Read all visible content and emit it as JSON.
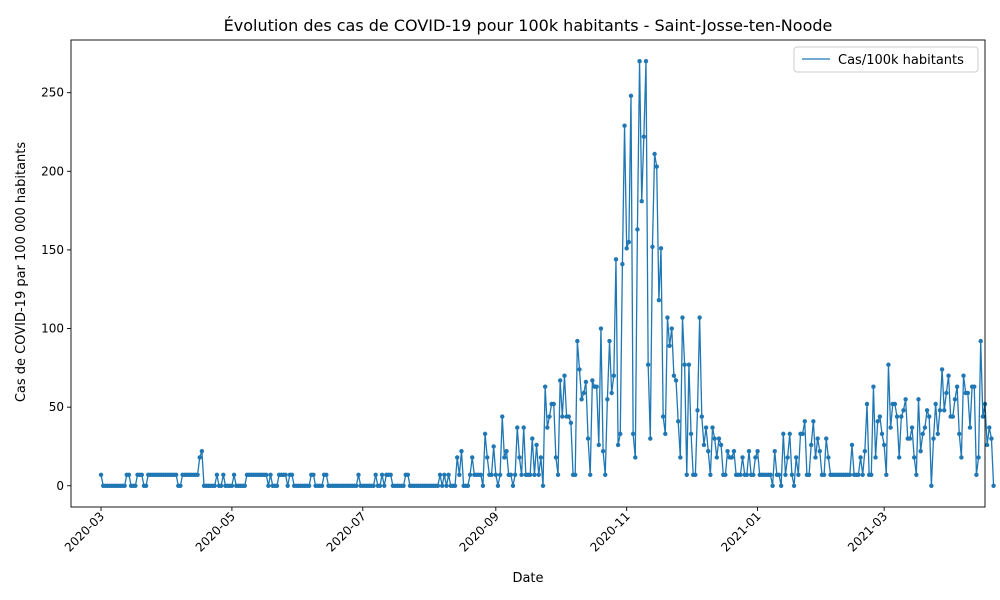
{
  "chart_data": {
    "type": "line",
    "title": "Évolution des cas de COVID-19 pour 100k habitants - Saint-Josse-ten-Noode",
    "xlabel": "Date",
    "ylabel": "Cas de COVID-19 par 100 000 habitants",
    "xlim": [
      "2020-02-16",
      "2021-04-17"
    ],
    "ylim": [
      -13.5,
      283.5
    ],
    "grid": false,
    "legend_position": "top-right",
    "x_ticks": [
      {
        "date": "2020-03-01",
        "label": "2020-03"
      },
      {
        "date": "2020-05-01",
        "label": "2020-05"
      },
      {
        "date": "2020-07-01",
        "label": "2020-07"
      },
      {
        "date": "2020-09-01",
        "label": "2020-09"
      },
      {
        "date": "2020-11-01",
        "label": "2020-11"
      },
      {
        "date": "2021-01-01",
        "label": "2021-01"
      },
      {
        "date": "2021-03-01",
        "label": "2021-03"
      }
    ],
    "y_ticks": [
      0,
      50,
      100,
      150,
      200,
      250
    ],
    "series": [
      {
        "name": "Cas/100k habitants",
        "color": "#1f77b4",
        "start_date": "2020-03-01",
        "step_days": 1,
        "values": [
          7,
          0,
          0,
          0,
          0,
          0,
          0,
          0,
          0,
          0,
          0,
          0,
          7,
          7,
          0,
          0,
          0,
          7,
          7,
          7,
          0,
          0,
          7,
          7,
          7,
          7,
          7,
          7,
          7,
          7,
          7,
          7,
          7,
          7,
          7,
          7,
          0,
          0,
          7,
          7,
          7,
          7,
          7,
          7,
          7,
          7,
          18,
          22,
          0,
          0,
          0,
          0,
          0,
          0,
          7,
          0,
          0,
          7,
          0,
          0,
          0,
          0,
          7,
          0,
          0,
          0,
          0,
          0,
          7,
          7,
          7,
          7,
          7,
          7,
          7,
          7,
          7,
          7,
          0,
          7,
          0,
          0,
          0,
          7,
          7,
          7,
          7,
          0,
          7,
          7,
          0,
          0,
          0,
          0,
          0,
          0,
          0,
          0,
          7,
          7,
          0,
          0,
          0,
          0,
          7,
          7,
          0,
          0,
          0,
          0,
          0,
          0,
          0,
          0,
          0,
          0,
          0,
          0,
          0,
          0,
          7,
          0,
          0,
          0,
          0,
          0,
          0,
          0,
          7,
          0,
          0,
          7,
          0,
          7,
          7,
          7,
          0,
          0,
          0,
          0,
          0,
          0,
          7,
          7,
          0,
          0,
          0,
          0,
          0,
          0,
          0,
          0,
          0,
          0,
          0,
          0,
          0,
          0,
          7,
          0,
          7,
          0,
          7,
          0,
          0,
          0,
          18,
          7,
          22,
          0,
          0,
          0,
          7,
          18,
          7,
          7,
          7,
          7,
          0,
          33,
          18,
          7,
          7,
          25,
          7,
          0,
          7,
          44,
          18,
          22,
          7,
          7,
          0,
          7,
          37,
          18,
          7,
          37,
          7,
          7,
          7,
          30,
          7,
          26,
          7,
          18,
          0,
          63,
          37,
          44,
          52,
          52,
          18,
          7,
          67,
          44,
          70,
          44,
          44,
          40,
          7,
          7,
          92,
          74,
          55,
          59,
          66,
          30,
          7,
          67,
          63,
          63,
          26,
          100,
          22,
          7,
          55,
          92,
          59,
          70,
          144,
          26,
          33,
          141,
          229,
          151,
          155,
          248,
          33,
          18,
          163,
          270,
          181,
          222,
          270,
          77,
          30,
          152,
          211,
          203,
          118,
          151,
          44,
          33,
          107,
          89,
          100,
          70,
          67,
          41,
          18,
          107,
          77,
          7,
          77,
          33,
          7,
          7,
          48,
          107,
          44,
          26,
          37,
          22,
          7,
          37,
          30,
          18,
          30,
          26,
          7,
          7,
          22,
          18,
          18,
          22,
          7,
          7,
          7,
          18,
          7,
          7,
          22,
          7,
          7,
          18,
          22,
          7,
          7,
          7,
          7,
          7,
          7,
          0,
          22,
          7,
          7,
          0,
          33,
          7,
          18,
          33,
          7,
          0,
          18,
          7,
          33,
          33,
          41,
          7,
          7,
          26,
          41,
          18,
          30,
          22,
          7,
          7,
          30,
          18,
          7,
          7,
          7,
          7,
          7,
          7,
          7,
          7,
          7,
          7,
          26,
          7,
          7,
          7,
          18,
          7,
          22,
          52,
          7,
          7,
          63,
          18,
          41,
          44,
          33,
          26,
          7,
          77,
          37,
          52,
          52,
          44,
          18,
          44,
          48,
          55,
          30,
          30,
          37,
          18,
          7,
          55,
          22,
          33,
          37,
          48,
          44,
          0,
          30,
          52,
          33,
          48,
          74,
          48,
          59,
          70,
          44,
          44,
          55,
          63,
          33,
          18,
          70,
          59,
          59,
          37,
          63,
          63,
          7,
          18,
          92,
          44,
          52,
          26,
          37,
          30,
          0
        ]
      }
    ]
  }
}
